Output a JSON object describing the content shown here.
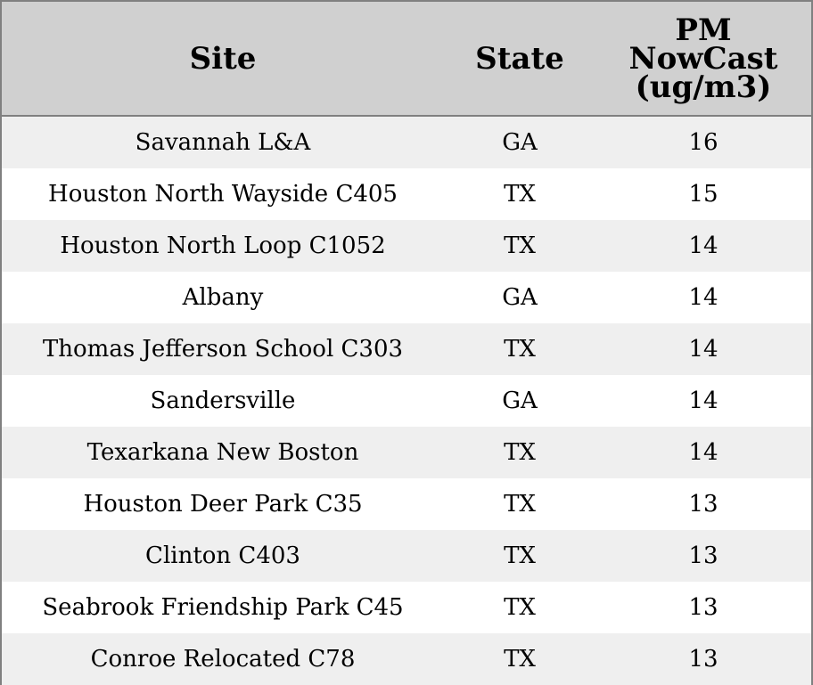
{
  "chart_data": {
    "type": "table",
    "columns": [
      "Site",
      "State",
      "PM NowCast (ug/m3)"
    ],
    "header_lines": [
      [
        "Site"
      ],
      [
        "State"
      ],
      [
        "PM",
        "NowCast",
        "(ug/m3)"
      ]
    ],
    "rows": [
      {
        "site": "Savannah L&A",
        "state": "GA",
        "value": "16"
      },
      {
        "site": "Houston North Wayside C405",
        "state": "TX",
        "value": "15"
      },
      {
        "site": "Houston North Loop C1052",
        "state": "TX",
        "value": "14"
      },
      {
        "site": "Albany",
        "state": "GA",
        "value": "14"
      },
      {
        "site": "Thomas Jefferson School C303",
        "state": "TX",
        "value": "14"
      },
      {
        "site": "Sandersville",
        "state": "GA",
        "value": "14"
      },
      {
        "site": "Texarkana New Boston",
        "state": "TX",
        "value": "14"
      },
      {
        "site": "Houston Deer Park C35",
        "state": "TX",
        "value": "13"
      },
      {
        "site": "Clinton C403",
        "state": "TX",
        "value": "13"
      },
      {
        "site": "Seabrook Friendship Park C45",
        "state": "TX",
        "value": "13"
      },
      {
        "site": "Conroe Relocated C78",
        "state": "TX",
        "value": "13"
      }
    ]
  },
  "colors": {
    "header_bg": "#d0d0d0",
    "row_alt_bg": "#efefef",
    "row_bg": "#ffffff",
    "border": "#808080",
    "text": "#000000"
  }
}
